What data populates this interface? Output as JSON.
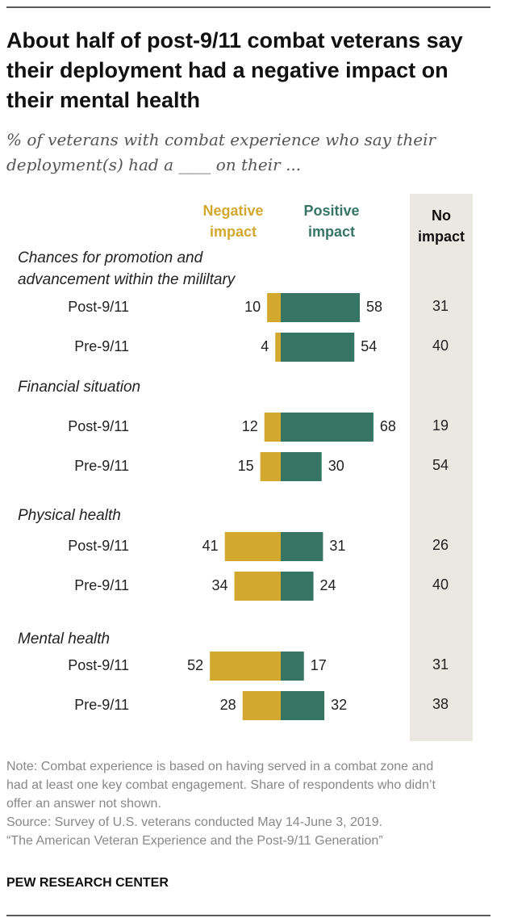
{
  "chart_data": {
    "type": "diverging_bar",
    "title": "About half of post-9/11 combat veterans say their deployment had a negative impact on their mental health",
    "subtitle": "% of veterans with combat experience who say their deployment(s) had a ____ on their ...",
    "series": [
      {
        "name": "Negative impact",
        "color": "#d3a82f"
      },
      {
        "name": "Positive impact",
        "color": "#367564"
      }
    ],
    "no_impact_label": "No impact",
    "groups": [
      {
        "label": "Chances for promotion and advancement within the mililtary",
        "rows": [
          {
            "label": "Post-9/11",
            "negative": 10,
            "positive": 58,
            "no_impact": 31
          },
          {
            "label": "Pre-9/11",
            "negative": 4,
            "positive": 54,
            "no_impact": 40
          }
        ]
      },
      {
        "label": "Financial situation",
        "rows": [
          {
            "label": "Post-9/11",
            "negative": 12,
            "positive": 68,
            "no_impact": 19
          },
          {
            "label": "Pre-9/11",
            "negative": 15,
            "positive": 30,
            "no_impact": 54
          }
        ]
      },
      {
        "label": "Physical health",
        "rows": [
          {
            "label": "Post-9/11",
            "negative": 41,
            "positive": 31,
            "no_impact": 26
          },
          {
            "label": "Pre-9/11",
            "negative": 34,
            "positive": 24,
            "no_impact": 40
          }
        ]
      },
      {
        "label": "Mental health",
        "rows": [
          {
            "label": "Post-9/11",
            "negative": 52,
            "positive": 17,
            "no_impact": 31
          },
          {
            "label": "Pre-9/11",
            "negative": 28,
            "positive": 32,
            "no_impact": 38
          }
        ]
      }
    ],
    "note": "Note: Combat experience is based on having served in a combat zone and had at least one key combat engagement. Share of respondents who didn’t offer an answer not shown.",
    "source": [
      "Source: Survey of U.S. veterans conducted May 14-June 3, 2019.",
      "“The American Veteran Experience and the Post-9/11 Generation”"
    ],
    "footer": "PEW RESEARCH CENTER"
  }
}
